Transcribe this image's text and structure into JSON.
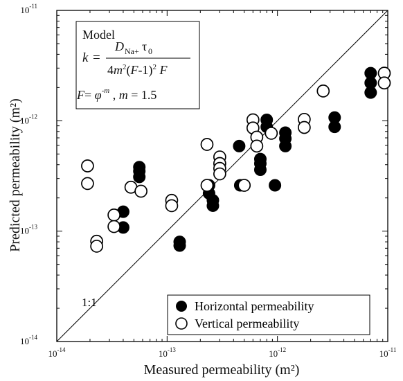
{
  "chart_data": {
    "type": "scatter",
    "xscale": "log",
    "yscale": "log",
    "xlim": [
      1e-14,
      1e-11
    ],
    "ylim": [
      1e-14,
      1e-11
    ],
    "xlabel": "Measured permeability (m²)",
    "ylabel": "Predicted permeability (m²)",
    "x_ticks": [
      {
        "base": "10",
        "exp": "-14"
      },
      {
        "base": "10",
        "exp": "-13"
      },
      {
        "base": "10",
        "exp": "-12"
      },
      {
        "base": "10",
        "exp": "-11"
      }
    ],
    "y_ticks": [
      {
        "base": "10",
        "exp": "-14"
      },
      {
        "base": "10",
        "exp": "-13"
      },
      {
        "base": "10",
        "exp": "-12"
      },
      {
        "base": "10",
        "exp": "-11"
      }
    ],
    "reference_line_label": "1:1",
    "model": {
      "title": "Model",
      "eq1": "k = D_Na+ τ0 / (4m²(F-1)² F)",
      "eq2": "F = φ^-m , m = 1.5"
    },
    "legend": {
      "placement": "bottom-right",
      "entries": [
        "Horizontal permeability",
        "Vertical permeability"
      ]
    },
    "series": [
      {
        "name": "Horizontal permeability",
        "marker": "filled-circle",
        "color": "#000000",
        "points": [
          [
            4e-14,
            1.5e-13
          ],
          [
            4e-14,
            1.08e-13
          ],
          [
            5.6e-14,
            3.8e-13
          ],
          [
            5.6e-14,
            3.5e-13
          ],
          [
            5.6e-14,
            3.1e-13
          ],
          [
            1.3e-13,
            8e-14
          ],
          [
            1.3e-13,
            7.4e-14
          ],
          [
            2.4e-13,
            2.6e-13
          ],
          [
            2.4e-13,
            2.2e-13
          ],
          [
            2.6e-13,
            1.9e-13
          ],
          [
            2.6e-13,
            1.7e-13
          ],
          [
            4.5e-13,
            5.9e-13
          ],
          [
            4.6e-13,
            2.6e-13
          ],
          [
            7e-13,
            4.5e-13
          ],
          [
            7e-13,
            4.1e-13
          ],
          [
            7e-13,
            3.6e-13
          ],
          [
            8e-13,
            1.02e-12
          ],
          [
            8e-13,
            8.8e-13
          ],
          [
            9.5e-13,
            2.6e-13
          ],
          [
            1.18e-12,
            7.8e-13
          ],
          [
            1.18e-12,
            6.9e-13
          ],
          [
            1.18e-12,
            5.9e-13
          ],
          [
            3.3e-12,
            1.07e-12
          ],
          [
            3.3e-12,
            8.8e-13
          ],
          [
            7e-12,
            2.7e-12
          ],
          [
            7e-12,
            2.2e-12
          ],
          [
            7e-12,
            1.8e-12
          ]
        ]
      },
      {
        "name": "Vertical permeability",
        "marker": "open-circle",
        "color": "#000000",
        "points": [
          [
            1.9e-14,
            3.9e-13
          ],
          [
            1.9e-14,
            2.7e-13
          ],
          [
            2.3e-14,
            8.1e-14
          ],
          [
            2.3e-14,
            7.3e-14
          ],
          [
            3.3e-14,
            1.4e-13
          ],
          [
            3.3e-14,
            1.1e-13
          ],
          [
            4.7e-14,
            2.5e-13
          ],
          [
            5.8e-14,
            2.3e-13
          ],
          [
            1.1e-13,
            1.9e-13
          ],
          [
            1.1e-13,
            1.7e-13
          ],
          [
            2.3e-13,
            6.1e-13
          ],
          [
            2.3e-13,
            2.6e-13
          ],
          [
            3e-13,
            4.7e-13
          ],
          [
            3e-13,
            4.1e-13
          ],
          [
            3e-13,
            3.7e-13
          ],
          [
            3e-13,
            3.3e-13
          ],
          [
            5e-13,
            2.6e-13
          ],
          [
            6e-13,
            1.02e-12
          ],
          [
            6e-13,
            8.6e-13
          ],
          [
            6.5e-13,
            7.1e-13
          ],
          [
            6.5e-13,
            5.9e-13
          ],
          [
            8.8e-13,
            7.7e-13
          ],
          [
            1.75e-12,
            1.03e-12
          ],
          [
            1.75e-12,
            8.7e-13
          ],
          [
            2.6e-12,
            1.86e-12
          ],
          [
            9.3e-12,
            2.7e-12
          ],
          [
            9.3e-12,
            2.2e-12
          ]
        ]
      }
    ]
  }
}
